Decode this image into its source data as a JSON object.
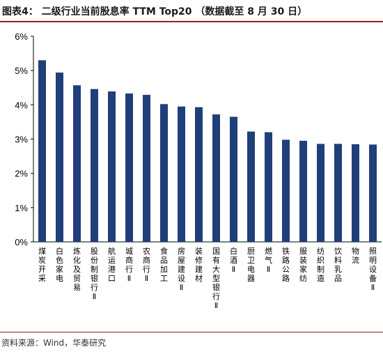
{
  "title": "图表4：  二级行业当前股息率 TTM Top20  （数据截至 8 月 30 日）",
  "source": "资料来源：Wind，华泰研究",
  "colors": {
    "bar": "#1f3f7a",
    "axis": "#000000",
    "accent": "#9b1b1f"
  },
  "chart_data": {
    "type": "bar",
    "title": "二级行业当前股息率 TTM Top20",
    "xlabel": "",
    "ylabel": "",
    "ylim": [
      0,
      6
    ],
    "yticks": [
      "0%",
      "1%",
      "2%",
      "3%",
      "4%",
      "5%",
      "6%"
    ],
    "grid": false,
    "categories": [
      "煤炭开采",
      "白色家电",
      "炼化及贸易",
      "股份制银行Ⅱ",
      "航运港口",
      "城商行Ⅱ",
      "农商行Ⅱ",
      "食品加工",
      "房屋建设Ⅱ",
      "装修建材",
      "国有大型银行Ⅱ",
      "白酒Ⅱ",
      "厨卫电器",
      "燃气Ⅱ",
      "铁路公路",
      "服装家纺",
      "纺织制造",
      "饮料乳品",
      "物流",
      "照明设备Ⅱ"
    ],
    "values": [
      5.3,
      4.94,
      4.57,
      4.46,
      4.39,
      4.33,
      4.29,
      4.02,
      3.95,
      3.93,
      3.72,
      3.65,
      3.22,
      3.2,
      2.98,
      2.95,
      2.86,
      2.86,
      2.85,
      2.84
    ]
  }
}
